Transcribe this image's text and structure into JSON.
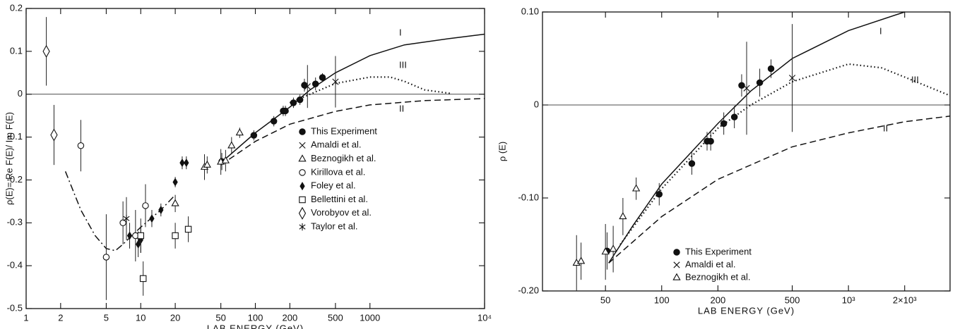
{
  "chart_data": [
    {
      "type": "scatter",
      "xlabel": "LAB ENERGY (GeV)",
      "ylabel": "ρ(E)= Re F(E)/ Im F(E)",
      "xscale": "log",
      "xlim": [
        1,
        10000
      ],
      "ylim": [
        -0.5,
        0.2
      ],
      "xticks": [
        1,
        2,
        5,
        10,
        20,
        50,
        100,
        200,
        500,
        1000,
        {
          "value": 10000,
          "label": "10⁴"
        }
      ],
      "yticks": [
        0.2,
        0.1,
        0,
        -0.1,
        -0.2,
        -0.3,
        -0.4,
        -0.5
      ],
      "zero_line": true,
      "legend": "right",
      "series": [
        {
          "name": "This Experiment",
          "marker": "circle-filled",
          "x": [
            51,
            97,
            145,
            175,
            183,
            215,
            245,
            268,
            335,
            385
          ],
          "values": [
            -0.157,
            -0.096,
            -0.063,
            -0.039,
            -0.039,
            -0.02,
            -0.013,
            0.021,
            0.024,
            0.039
          ],
          "errors": [
            0.02,
            0.012,
            0.012,
            0.012,
            0.012,
            0.012,
            0.012,
            0.015,
            0.015,
            0.01
          ]
        },
        {
          "name": "Amaldi et al.",
          "marker": "x",
          "x": [
            285,
            500
          ],
          "values": [
            0.018,
            0.029
          ],
          "errors": [
            0.05,
            0.06
          ]
        },
        {
          "name": "Beznogikh et al.",
          "marker": "triangle",
          "x": [
            20,
            36,
            38,
            50,
            55,
            62,
            73
          ],
          "values": [
            -0.255,
            -0.17,
            -0.165,
            -0.158,
            -0.155,
            -0.12,
            -0.09
          ],
          "errors": [
            0.02,
            0.03,
            0.02,
            0.03,
            0.025,
            0.02,
            0.012
          ]
        },
        {
          "name": "Kirillova et al.",
          "marker": "circle",
          "x": [
            3,
            5,
            7,
            9,
            11
          ],
          "values": [
            -0.12,
            -0.38,
            -0.3,
            -0.33,
            -0.26
          ],
          "errors": [
            0.06,
            0.1,
            0.05,
            0.06,
            0.05
          ]
        },
        {
          "name": "Foley et al.",
          "marker": "diamond-filled",
          "x": [
            8,
            9.5,
            10,
            12.5,
            15,
            20,
            23,
            25
          ],
          "values": [
            -0.33,
            -0.35,
            -0.34,
            -0.29,
            -0.27,
            -0.205,
            -0.16,
            -0.16
          ],
          "errors": [
            0.03,
            0.03,
            0.03,
            0.02,
            0.015,
            0.012,
            0.015,
            0.015
          ]
        },
        {
          "name": "Bellettini et al.",
          "marker": "square",
          "x": [
            10,
            10.5,
            20,
            26
          ],
          "values": [
            -0.33,
            -0.43,
            -0.33,
            -0.315
          ],
          "errors": [
            0.04,
            0.04,
            0.03,
            0.03
          ]
        },
        {
          "name": "Vorobyov et al.",
          "marker": "diamond",
          "x": [
            1.5,
            1.75
          ],
          "values": [
            0.1,
            -0.095
          ],
          "errors": [
            0.08,
            0.07
          ]
        },
        {
          "name": "Taylor et al.",
          "marker": "asterisk",
          "x": [
            7.5
          ],
          "values": [
            -0.29
          ],
          "errors": [
            0.05
          ]
        }
      ],
      "curves": [
        {
          "name": "I",
          "style": "solid",
          "x": [
            50,
            100,
            200,
            300,
            500,
            1000,
            2000,
            5000,
            10000
          ],
          "values": [
            -0.16,
            -0.09,
            -0.03,
            0.01,
            0.05,
            0.09,
            0.115,
            0.13,
            0.14
          ]
        },
        {
          "name": "III",
          "style": "dotted",
          "x": [
            200,
            300,
            500,
            1000,
            1500,
            2000,
            3000,
            5000
          ],
          "values": [
            -0.02,
            0.0,
            0.025,
            0.04,
            0.04,
            0.03,
            0.01,
            0.002
          ]
        },
        {
          "name": "II",
          "style": "dashed",
          "x": [
            50,
            100,
            200,
            500,
            1000,
            3000,
            10000
          ],
          "values": [
            -0.165,
            -0.11,
            -0.07,
            -0.04,
            -0.025,
            -0.015,
            -0.01
          ]
        },
        {
          "style": "dashdot",
          "x": [
            2.2,
            3,
            4,
            5,
            6,
            7,
            10,
            15,
            20
          ],
          "values": [
            -0.18,
            -0.27,
            -0.33,
            -0.36,
            -0.365,
            -0.35,
            -0.31,
            -0.27,
            -0.235
          ]
        }
      ]
    },
    {
      "type": "scatter",
      "xlabel": "LAB ENERGY (GeV)",
      "ylabel": "ρ (E)",
      "xscale": "log",
      "xlim": [
        23,
        3500
      ],
      "ylim": [
        -0.2,
        0.1
      ],
      "xticks": [
        50,
        100,
        200,
        500,
        {
          "value": 1000,
          "label": "10³"
        },
        {
          "value": 2000,
          "label": "2×10³"
        }
      ],
      "yticks": [
        {
          "value": 0.1,
          "label": "0.10"
        },
        0,
        {
          "value": -0.1,
          "label": "-0.10"
        },
        {
          "value": -0.2,
          "label": "-0.20"
        }
      ],
      "zero_line": true,
      "legend": "lower right",
      "series": [
        {
          "name": "This Experiment",
          "marker": "circle-filled",
          "x": [
            51,
            97,
            145,
            175,
            183,
            215,
            245,
            268,
            335,
            385
          ],
          "values": [
            -0.157,
            -0.096,
            -0.063,
            -0.039,
            -0.039,
            -0.02,
            -0.013,
            0.021,
            0.024,
            0.039
          ],
          "errors": [
            0.02,
            0.012,
            0.012,
            0.01,
            0.01,
            0.012,
            0.012,
            0.012,
            0.015,
            0.01
          ]
        },
        {
          "name": "Amaldi et al.",
          "marker": "x",
          "x": [
            285,
            500
          ],
          "values": [
            0.018,
            0.029
          ],
          "errors": [
            0.05,
            0.058
          ]
        },
        {
          "name": "Beznogikh et al.",
          "marker": "triangle",
          "x": [
            35,
            37,
            50,
            55,
            62,
            73
          ],
          "values": [
            -0.17,
            -0.168,
            -0.158,
            -0.155,
            -0.12,
            -0.09
          ],
          "errors": [
            0.03,
            0.02,
            0.03,
            0.025,
            0.02,
            0.012
          ]
        }
      ],
      "curves": [
        {
          "name": "I",
          "style": "solid",
          "x": [
            52,
            70,
            100,
            200,
            300,
            500,
            1000,
            2000
          ],
          "values": [
            -0.17,
            -0.13,
            -0.085,
            -0.02,
            0.015,
            0.05,
            0.08,
            0.1
          ]
        },
        {
          "name": "III",
          "style": "dotted",
          "x": [
            60,
            100,
            200,
            300,
            500,
            1000,
            1500,
            2000,
            3500
          ],
          "values": [
            -0.15,
            -0.09,
            -0.025,
            0.0,
            0.025,
            0.044,
            0.04,
            0.03,
            0.01
          ]
        },
        {
          "name": "II",
          "style": "dashed",
          "x": [
            52,
            100,
            200,
            500,
            1000,
            2000,
            3500
          ],
          "values": [
            -0.17,
            -0.12,
            -0.08,
            -0.045,
            -0.03,
            -0.018,
            -0.012
          ]
        }
      ]
    }
  ]
}
